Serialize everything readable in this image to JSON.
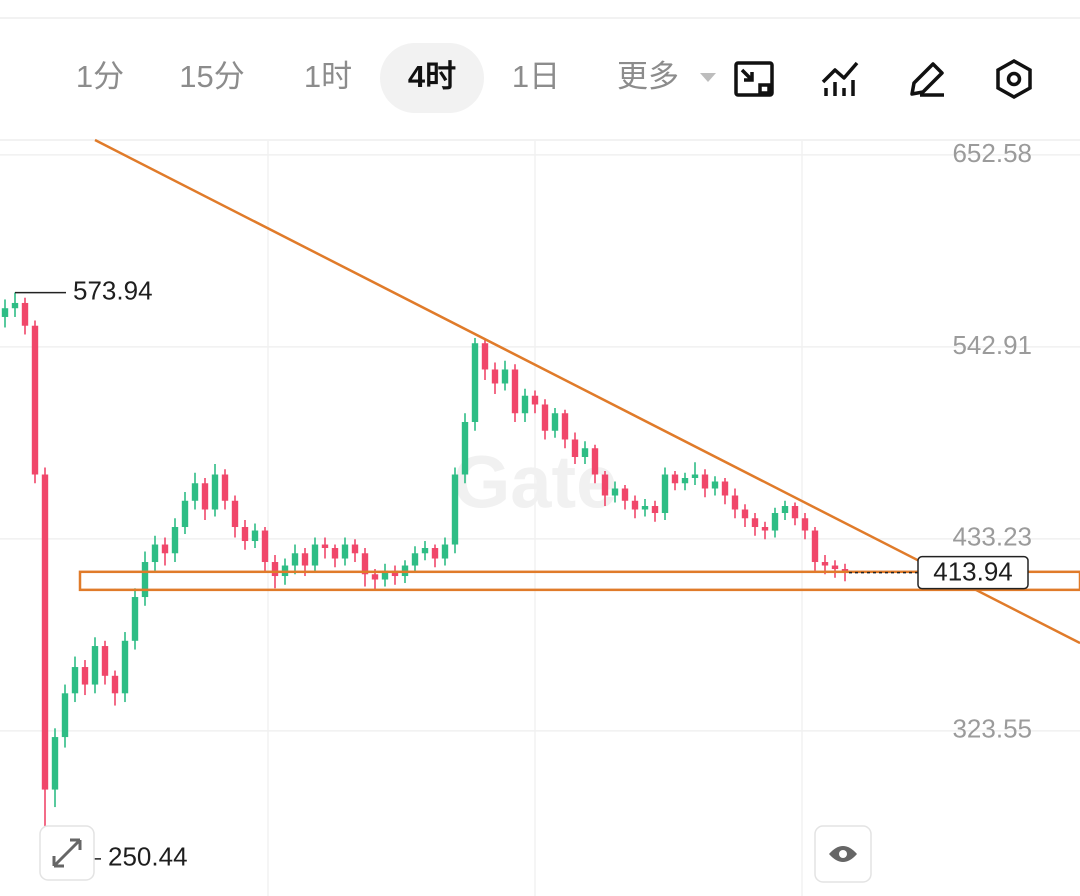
{
  "toolbar": {
    "tabs": [
      "1分",
      "15分",
      "1时",
      "4时",
      "1日",
      "更多"
    ],
    "selected": 3
  },
  "watermark": "Gate",
  "chart_data": {
    "type": "candlestick",
    "up_color": "#2ebd85",
    "down_color": "#f0476a",
    "xlim": [
      -0.5,
      107.5
    ],
    "ylim": [
      229.2,
      661.1
    ],
    "yticks": [
      652.58,
      542.91,
      433.23,
      323.55
    ],
    "grid": true,
    "open": [
      560,
      565,
      568,
      555,
      470,
      290,
      320,
      345,
      360,
      350,
      372,
      355,
      345,
      375,
      400,
      420,
      430,
      425,
      440,
      455,
      465,
      450,
      470,
      455,
      440,
      432,
      438,
      420,
      412,
      418,
      425,
      418,
      430,
      428,
      422,
      430,
      425,
      413,
      410,
      415,
      412,
      418,
      425,
      428,
      422,
      430,
      470,
      500,
      545,
      530,
      522,
      530,
      505,
      515,
      510,
      495,
      505,
      490,
      480,
      485,
      470,
      458,
      462,
      455,
      450,
      452,
      448,
      470,
      465,
      468,
      470,
      462,
      466,
      458,
      450,
      445,
      440,
      438,
      448,
      452,
      445,
      438,
      420,
      418,
      416
    ],
    "high": [
      570,
      573.94,
      571,
      558,
      474,
      325,
      350,
      366,
      364,
      377,
      375,
      358,
      380,
      405,
      426,
      435,
      434,
      445,
      460,
      471,
      468,
      476,
      473,
      458,
      444,
      442,
      440,
      424,
      422,
      430,
      428,
      434,
      434,
      430,
      434,
      433,
      428,
      416,
      419,
      418,
      421,
      429,
      432,
      430,
      434,
      474,
      505,
      548,
      547,
      534,
      535,
      533,
      519,
      518,
      513,
      508,
      507,
      494,
      489,
      487,
      472,
      466,
      464,
      458,
      456,
      455,
      474,
      472,
      471,
      477,
      473,
      469,
      468,
      462,
      453,
      448,
      443,
      451,
      455,
      454,
      448,
      440,
      424,
      421,
      419
    ],
    "low": [
      554,
      560,
      550,
      465,
      250.44,
      280,
      314,
      340,
      344,
      345,
      350,
      338,
      340,
      370,
      395,
      415,
      418,
      420,
      436,
      450,
      444,
      446,
      450,
      434,
      427,
      428,
      414,
      405,
      407,
      413,
      412,
      414,
      422,
      417,
      418,
      420,
      406,
      404,
      406,
      407,
      408,
      414,
      421,
      417,
      418,
      425,
      465,
      495,
      524,
      516,
      518,
      500,
      500,
      505,
      490,
      491,
      485,
      476,
      476,
      465,
      452,
      454,
      450,
      445,
      446,
      443,
      444,
      461,
      461,
      464,
      457,
      458,
      453,
      445,
      440,
      435,
      433,
      434,
      444,
      441,
      433,
      415,
      413,
      411,
      409
    ],
    "close": [
      565,
      568,
      555,
      470,
      290,
      320,
      345,
      360,
      350,
      372,
      355,
      345,
      375,
      400,
      420,
      430,
      425,
      440,
      455,
      465,
      450,
      470,
      455,
      440,
      432,
      438,
      420,
      412,
      418,
      425,
      418,
      430,
      428,
      422,
      430,
      425,
      413,
      410,
      415,
      412,
      418,
      425,
      428,
      422,
      430,
      470,
      500,
      545,
      530,
      522,
      530,
      505,
      515,
      510,
      495,
      505,
      490,
      480,
      485,
      470,
      458,
      462,
      455,
      450,
      452,
      448,
      470,
      465,
      468,
      470,
      462,
      466,
      458,
      450,
      445,
      440,
      438,
      448,
      452,
      445,
      438,
      420,
      418,
      416,
      413.94
    ],
    "high_label_index": 1,
    "low_label_index": 4,
    "trendline": {
      "x": [
        9,
        107.5
      ],
      "y": [
        661.1,
        373.7
      ],
      "color": "#e07b2a"
    },
    "zone": {
      "x": [
        7.5,
        107.5
      ],
      "y": [
        404.1,
        414.4
      ],
      "color": "#e07b2a"
    }
  }
}
